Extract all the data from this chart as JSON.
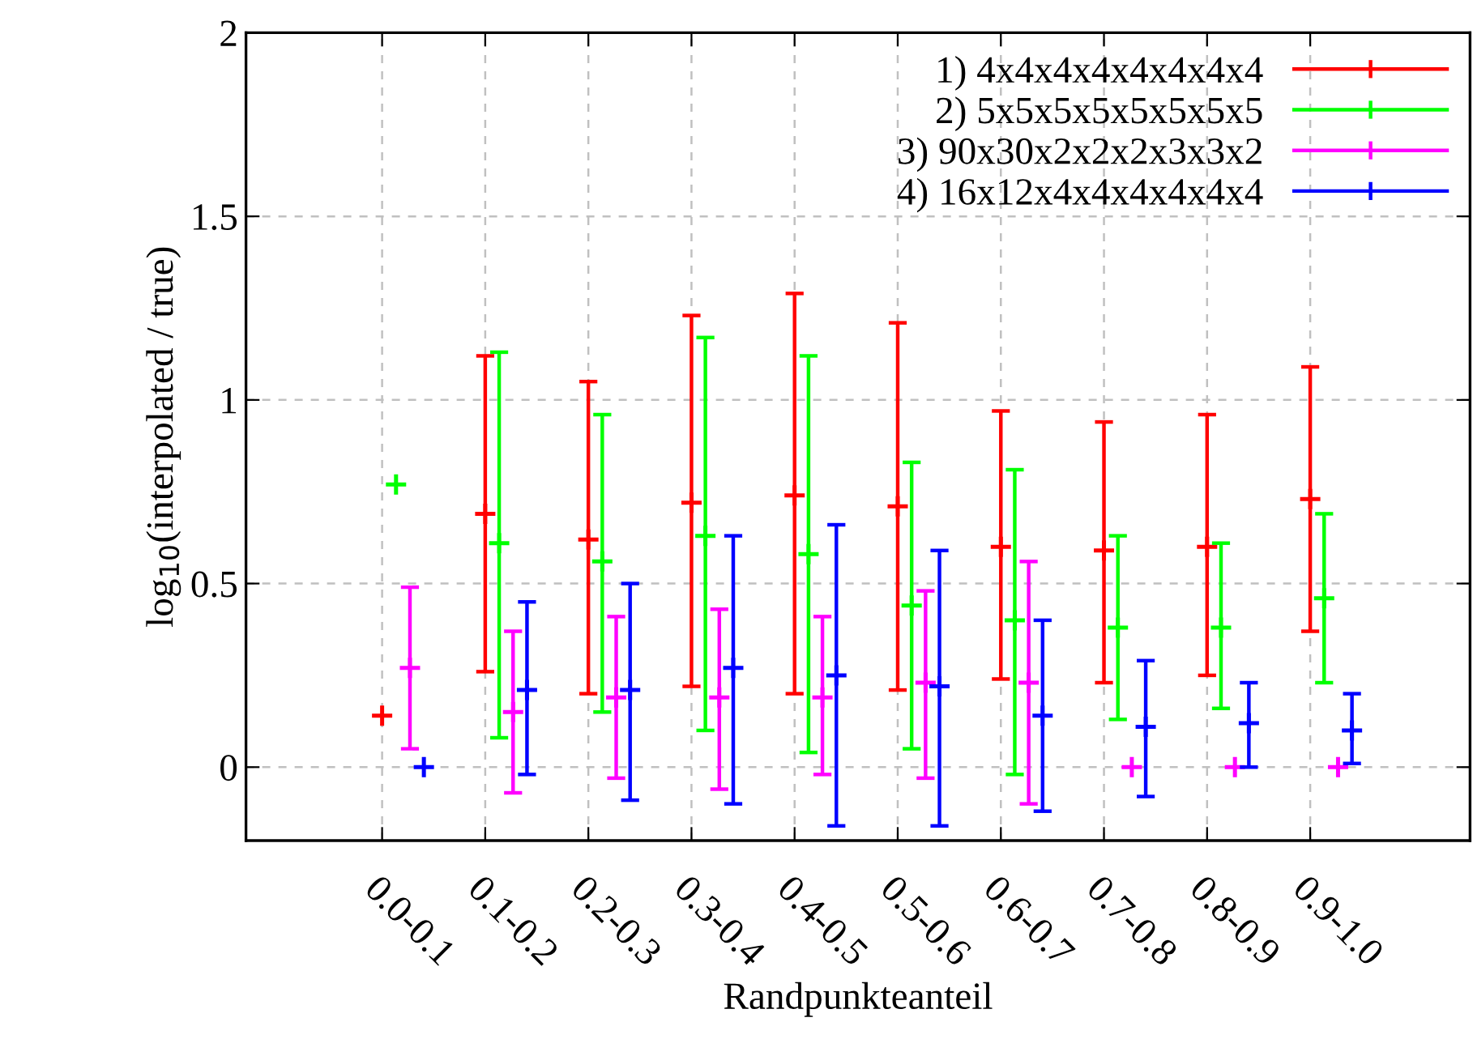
{
  "chart_data": {
    "type": "scatter",
    "xlabel": "Randpunkteanteil",
    "ylabel": "log$_{10}$(interpolated / true)",
    "categories": [
      "0.0-0.1",
      "0.1-0.2",
      "0.2-0.3",
      "0.3-0.4",
      "0.4-0.5",
      "0.5-0.6",
      "0.6-0.7",
      "0.7-0.8",
      "0.8-0.9",
      "0.9-1.0"
    ],
    "series": [
      {
        "name": "1) 4x4x4x4x4x4x4x4",
        "color": "#ff0000",
        "values": [
          0.14,
          0.69,
          0.62,
          0.72,
          0.74,
          0.71,
          0.6,
          0.59,
          0.6,
          0.73
        ],
        "errors": [
          null,
          [
            0.26,
            1.12
          ],
          [
            0.2,
            1.05
          ],
          [
            0.22,
            1.23
          ],
          [
            0.2,
            1.29
          ],
          [
            0.21,
            1.21
          ],
          [
            0.24,
            0.97
          ],
          [
            0.23,
            0.94
          ],
          [
            0.25,
            0.96
          ],
          [
            0.37,
            1.09
          ]
        ]
      },
      {
        "name": "2) 5x5x5x5x5x5x5x5",
        "color": "#00ff00",
        "values": [
          0.77,
          0.61,
          0.56,
          0.63,
          0.58,
          0.44,
          0.4,
          0.38,
          0.38,
          0.46
        ],
        "errors": [
          null,
          [
            0.08,
            1.13
          ],
          [
            0.15,
            0.96
          ],
          [
            0.1,
            1.17
          ],
          [
            0.04,
            1.12
          ],
          [
            0.05,
            0.83
          ],
          [
            -0.02,
            0.81
          ],
          [
            0.13,
            0.63
          ],
          [
            0.16,
            0.61
          ],
          [
            0.23,
            0.69
          ]
        ]
      },
      {
        "name": "3) 90x30x2x2x2x3x3x2",
        "color": "#ff00ff",
        "values": [
          0.27,
          0.15,
          0.19,
          0.19,
          0.19,
          0.23,
          0.23,
          0.0,
          0.0,
          0.0
        ],
        "errors": [
          [
            0.05,
            0.49
          ],
          [
            -0.07,
            0.37
          ],
          [
            -0.03,
            0.41
          ],
          [
            -0.06,
            0.43
          ],
          [
            -0.02,
            0.41
          ],
          [
            -0.03,
            0.48
          ],
          [
            -0.1,
            0.56
          ],
          null,
          null,
          null
        ]
      },
      {
        "name": "4) 16x12x4x4x4x4x4x4",
        "color": "#0000ff",
        "values": [
          0.0,
          0.21,
          0.21,
          0.27,
          0.25,
          0.22,
          0.14,
          0.11,
          0.12,
          0.1
        ],
        "errors": [
          null,
          [
            -0.02,
            0.45
          ],
          [
            -0.09,
            0.5
          ],
          [
            -0.1,
            0.63
          ],
          [
            -0.16,
            0.66
          ],
          [
            -0.16,
            0.59
          ],
          [
            -0.12,
            0.4
          ],
          [
            -0.08,
            0.29
          ],
          [
            0.0,
            0.23
          ],
          [
            0.01,
            0.2
          ]
        ]
      }
    ],
    "ylim": [
      -0.2,
      2
    ],
    "yticks": [
      0,
      0.5,
      1,
      1.5,
      2
    ],
    "grid": true,
    "legend": "top right",
    "marker": "cross"
  }
}
